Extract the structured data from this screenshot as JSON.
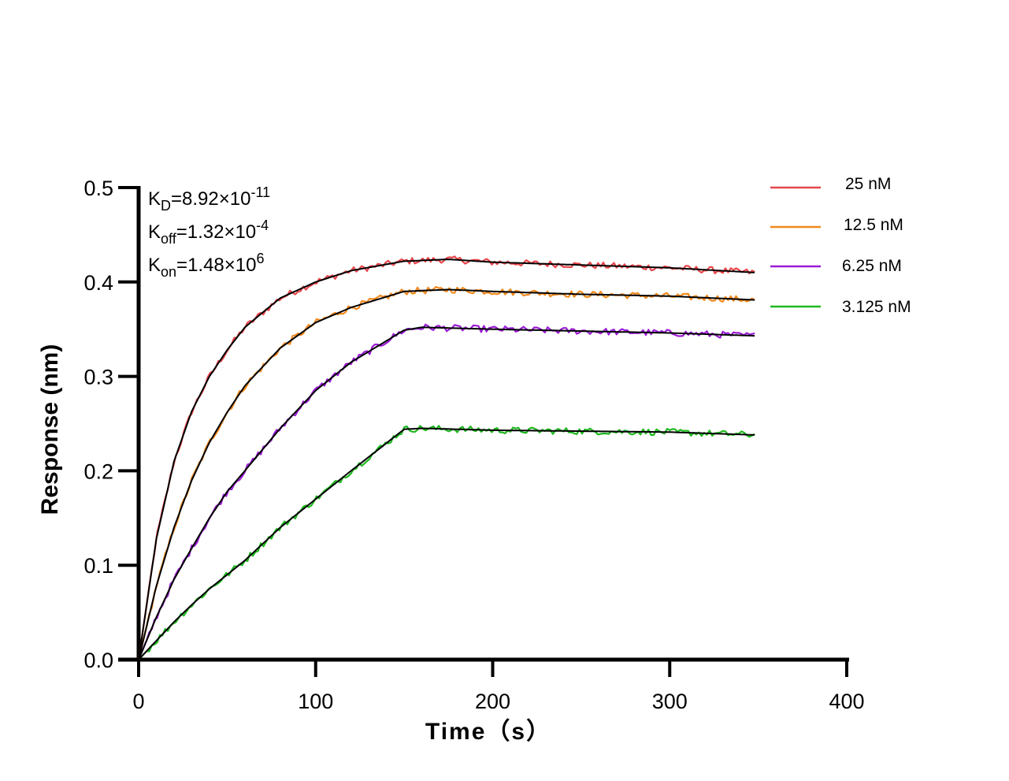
{
  "chart_data": {
    "type": "line",
    "xlabel": "Time（s）",
    "ylabel": "Response (nm)",
    "xlim": [
      0,
      400
    ],
    "ylim": [
      0,
      0.5
    ],
    "x_ticks": [
      "0",
      "100",
      "200",
      "300",
      "400"
    ],
    "y_ticks": [
      "0.0",
      "0.1",
      "0.2",
      "0.3",
      "0.4",
      "0.5"
    ],
    "grid": false,
    "legend_position": "top-right",
    "annotations": [
      {
        "symbol": "K",
        "sub": "D",
        "value": "=8.92×10",
        "exp": "-11"
      },
      {
        "symbol": "K",
        "sub": "off",
        "value": "=1.32×10",
        "exp": "-4"
      },
      {
        "symbol": "K",
        "sub": "on",
        "value": "=1.48×10",
        "exp": "6"
      }
    ],
    "association_end_time": 150,
    "end_time": 348,
    "series": [
      {
        "name": "25 nM",
        "color": "#e8464b",
        "x": [
          0,
          10,
          20,
          30,
          40,
          50,
          60,
          80,
          100,
          120,
          150,
          175,
          200,
          250,
          300,
          348
        ],
        "y": [
          0.0,
          0.128,
          0.21,
          0.263,
          0.3,
          0.328,
          0.352,
          0.383,
          0.4,
          0.412,
          0.422,
          0.424,
          0.421,
          0.418,
          0.415,
          0.41
        ]
      },
      {
        "name": "12.5 nM",
        "color": "#f08a1e",
        "x": [
          0,
          10,
          20,
          30,
          40,
          50,
          60,
          80,
          100,
          120,
          150,
          175,
          200,
          250,
          300,
          348
        ],
        "y": [
          0.0,
          0.078,
          0.14,
          0.19,
          0.23,
          0.262,
          0.29,
          0.33,
          0.357,
          0.373,
          0.39,
          0.392,
          0.39,
          0.387,
          0.385,
          0.381
        ]
      },
      {
        "name": "6.25 nM",
        "color": "#9b1bd6",
        "x": [
          0,
          10,
          20,
          30,
          40,
          50,
          60,
          80,
          100,
          120,
          150,
          160,
          200,
          250,
          300,
          348
        ],
        "y": [
          0.0,
          0.045,
          0.085,
          0.118,
          0.15,
          0.178,
          0.2,
          0.245,
          0.285,
          0.315,
          0.349,
          0.352,
          0.35,
          0.348,
          0.346,
          0.343
        ]
      },
      {
        "name": "3.125 nM",
        "color": "#1fb81f",
        "x": [
          0,
          10,
          20,
          30,
          40,
          50,
          60,
          80,
          100,
          120,
          150,
          160,
          200,
          250,
          300,
          348
        ],
        "y": [
          0.0,
          0.02,
          0.04,
          0.058,
          0.075,
          0.09,
          0.105,
          0.14,
          0.17,
          0.2,
          0.244,
          0.245,
          0.243,
          0.242,
          0.241,
          0.238
        ]
      }
    ],
    "fit_color": "#000000"
  }
}
